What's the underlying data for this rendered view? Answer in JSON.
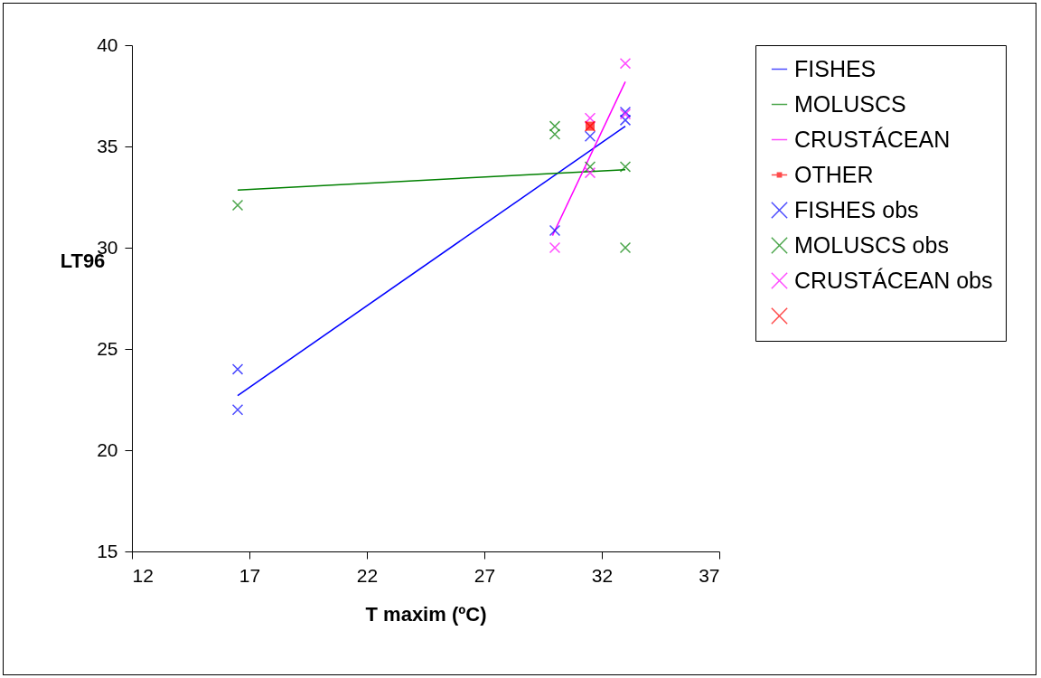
{
  "chart_data": {
    "type": "scatter",
    "xlabel": "T maxim (ºC)",
    "ylabel": "LT96",
    "xlim": [
      12,
      37
    ],
    "xticks": [
      12,
      17,
      22,
      27,
      32,
      37
    ],
    "ylim": [
      15,
      40
    ],
    "yticks": [
      15,
      20,
      25,
      30,
      35,
      40
    ],
    "grid": false,
    "legend": "right",
    "marker": "cross",
    "series": [
      {
        "name": "FISHES",
        "type": "line",
        "marker": "none",
        "color": "#0000ff",
        "x": [
          16.5,
          33
        ],
        "values": [
          22.7,
          36.0
        ]
      },
      {
        "name": "MOLUSCS",
        "type": "line",
        "marker": "none",
        "color": "#008000",
        "x": [
          16.5,
          33
        ],
        "values": [
          32.85,
          33.85
        ]
      },
      {
        "name": "CRUSTÁCEAN",
        "type": "line",
        "marker": "none",
        "color": "#ff00ff",
        "x": [
          29.9,
          33
        ],
        "values": [
          30.6,
          38.2
        ]
      },
      {
        "name": "OTHER",
        "type": "line",
        "marker": "square",
        "color": "#ff0000",
        "x": [
          31.5
        ],
        "values": [
          36.0
        ]
      },
      {
        "name": "FISHES obs",
        "color": "#0000ff",
        "x": [
          16.5,
          16.5,
          30,
          31.5,
          33,
          33
        ],
        "values": [
          24.0,
          22.0,
          30.85,
          35.5,
          36.7,
          36.3
        ]
      },
      {
        "name": "MOLUSCS obs",
        "color": "#008000",
        "x": [
          16.5,
          30,
          30,
          31.5,
          33,
          33
        ],
        "values": [
          32.1,
          36.0,
          35.6,
          34.0,
          34.0,
          30.0
        ]
      },
      {
        "name": "CRUSTÁCEAN obs",
        "color": "#ff00ff",
        "x": [
          30,
          31.5,
          31.5,
          33,
          33
        ],
        "values": [
          30.0,
          36.4,
          33.7,
          39.1,
          36.6
        ]
      },
      {
        "color": "#ff0000",
        "x": [
          31.5
        ],
        "values": [
          36.0
        ]
      }
    ]
  }
}
